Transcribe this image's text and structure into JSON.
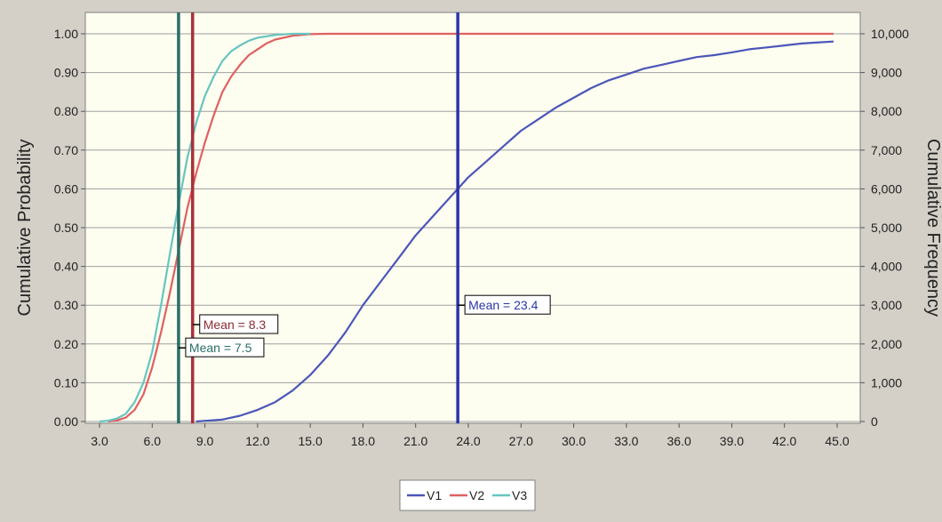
{
  "chart_data": {
    "type": "line",
    "title": "",
    "xlabel": "",
    "ylabel": "Cumulative Probability",
    "y2label": "Cumulative Frequency",
    "xlim": [
      2.0,
      46.0
    ],
    "ylim": [
      0,
      1
    ],
    "y2lim": [
      0,
      10000
    ],
    "grid": true,
    "legend_position": "bottom-center",
    "x_ticks": [
      "3.0",
      "6.0",
      "9.0",
      "12.0",
      "15.0",
      "18.0",
      "21.0",
      "24.0",
      "27.0",
      "30.0",
      "33.0",
      "36.0",
      "39.0",
      "42.0",
      "45.0"
    ],
    "x_tick_values": [
      3,
      6,
      9,
      12,
      15,
      18,
      21,
      24,
      27,
      30,
      33,
      36,
      39,
      42,
      45
    ],
    "y_ticks": [
      "0.00",
      "0.10",
      "0.20",
      "0.30",
      "0.40",
      "0.50",
      "0.60",
      "0.70",
      "0.80",
      "0.90",
      "1.00"
    ],
    "y_tick_values": [
      0,
      0.1,
      0.2,
      0.3,
      0.4,
      0.5,
      0.6,
      0.7,
      0.8,
      0.9,
      1.0
    ],
    "y2_ticks": [
      "0",
      "1,000",
      "2,000",
      "3,000",
      "4,000",
      "5,000",
      "6,000",
      "7,000",
      "8,000",
      "9,000",
      "10,000"
    ],
    "series": [
      {
        "name": "V1",
        "color": "#4b56b8",
        "x": [
          8.5,
          10,
          11,
          12,
          13,
          14,
          15,
          16,
          17,
          18,
          19,
          20,
          21,
          22,
          23,
          24,
          25,
          26,
          27,
          28,
          29,
          30,
          31,
          32,
          33,
          34,
          35,
          36,
          37,
          38,
          39,
          40,
          41,
          42,
          43,
          44,
          44.8
        ],
        "y": [
          0.0,
          0.005,
          0.015,
          0.03,
          0.05,
          0.08,
          0.12,
          0.17,
          0.23,
          0.3,
          0.36,
          0.42,
          0.48,
          0.53,
          0.58,
          0.63,
          0.67,
          0.71,
          0.75,
          0.78,
          0.81,
          0.835,
          0.86,
          0.88,
          0.895,
          0.91,
          0.92,
          0.93,
          0.94,
          0.945,
          0.952,
          0.96,
          0.965,
          0.97,
          0.975,
          0.978,
          0.98
        ]
      },
      {
        "name": "V2",
        "color": "#e06060",
        "x": [
          3.5,
          4,
          4.5,
          5,
          5.5,
          6,
          6.5,
          7,
          7.5,
          8,
          8.5,
          9,
          9.5,
          10,
          10.5,
          11,
          11.5,
          12,
          12.5,
          13,
          14,
          15,
          16,
          20,
          30,
          44.8
        ],
        "y": [
          0.0,
          0.003,
          0.01,
          0.03,
          0.07,
          0.14,
          0.23,
          0.33,
          0.44,
          0.55,
          0.64,
          0.72,
          0.79,
          0.85,
          0.89,
          0.92,
          0.945,
          0.96,
          0.975,
          0.985,
          0.995,
          0.999,
          1.0,
          1.0,
          1.0,
          1.0
        ]
      },
      {
        "name": "V3",
        "color": "#66c5c0",
        "x": [
          3.0,
          3.5,
          4,
          4.5,
          5,
          5.5,
          6,
          6.5,
          7,
          7.5,
          8,
          8.5,
          9,
          9.5,
          10,
          10.5,
          11,
          11.5,
          12,
          13,
          14,
          15
        ],
        "y": [
          0.0,
          0.002,
          0.008,
          0.02,
          0.05,
          0.1,
          0.18,
          0.3,
          0.43,
          0.56,
          0.68,
          0.77,
          0.84,
          0.89,
          0.93,
          0.955,
          0.97,
          0.982,
          0.99,
          0.997,
          1.0,
          1.0
        ]
      }
    ],
    "markers": [
      {
        "label": "Mean = 23.4",
        "x": 23.4,
        "label_y": 0.3,
        "color": "#2b35a8",
        "text_color": "#2b35a8"
      },
      {
        "label": "Mean = 8.3",
        "x": 8.3,
        "label_y": 0.25,
        "color": "#a8323a",
        "text_color": "#8b2b33"
      },
      {
        "label": "Mean = 7.5",
        "x": 7.5,
        "label_y": 0.19,
        "color": "#2a6e68",
        "text_color": "#2a6e68"
      }
    ],
    "colors": {
      "plot_background": "#fdfdf0",
      "frame_background": "#d4d0c8",
      "grid": "#a0a0a0"
    }
  }
}
